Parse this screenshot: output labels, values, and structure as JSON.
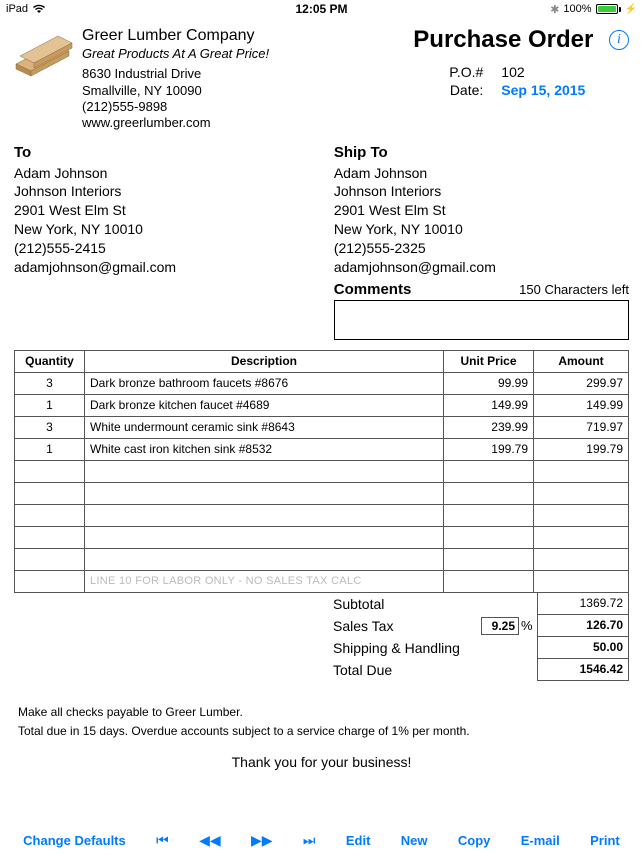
{
  "statusbar": {
    "device": "iPad",
    "time": "12:05 PM",
    "battery": "100%"
  },
  "company": {
    "name": "Greer Lumber Company",
    "slogan": "Great Products At A Great Price!",
    "address1": "8630 Industrial Drive",
    "address2": "Smallville, NY 10090",
    "phone": "(212)555-9898",
    "website": "www.greerlumber.com"
  },
  "title": "Purchase Order",
  "po": {
    "label": "P.O.#",
    "number": "102",
    "date_label": "Date:",
    "date": "Sep 15, 2015"
  },
  "billto": {
    "heading": "To",
    "name": "Adam Johnson",
    "co": "Johnson Interiors",
    "street": "2901 West Elm St",
    "city": "New York, NY 10010",
    "phone": "(212)555-2415",
    "email": "adamjohnson@gmail.com"
  },
  "shipto": {
    "heading": "Ship To",
    "name": "Adam Johnson",
    "co": "Johnson Interiors",
    "street": "2901 West Elm St",
    "city": "New York, NY 10010",
    "phone": "(212)555-2325",
    "email": "adamjohnson@gmail.com"
  },
  "comments": {
    "heading": "Comments",
    "chars_left": "150 Characters left"
  },
  "table": {
    "cols": {
      "qty": "Quantity",
      "desc": "Description",
      "unit": "Unit Price",
      "amt": "Amount"
    },
    "rows": [
      {
        "qty": "3",
        "desc": "Dark bronze bathroom faucets #8676",
        "unit": "99.99",
        "amt": "299.97"
      },
      {
        "qty": "1",
        "desc": "Dark bronze kitchen faucet #4689",
        "unit": "149.99",
        "amt": "149.99"
      },
      {
        "qty": "3",
        "desc": "White undermount ceramic sink #8643",
        "unit": "239.99",
        "amt": "719.97"
      },
      {
        "qty": "1",
        "desc": "White cast iron kitchen sink #8532",
        "unit": "199.79",
        "amt": "199.79"
      }
    ],
    "empty_rows": 5,
    "placeholder": "LINE 10 FOR LABOR ONLY - NO SALES TAX CALC"
  },
  "totals": {
    "subtotal_label": "Subtotal",
    "subtotal": "1369.72",
    "tax_label": "Sales Tax",
    "tax_rate": "9.25",
    "tax_pct": "%",
    "tax": "126.70",
    "ship_label": "Shipping & Handling",
    "ship": "50.00",
    "due_label": "Total Due",
    "due": "1546.42"
  },
  "notes": {
    "l1": "Make all checks payable to Greer Lumber.",
    "l2": "Total due in 15 days. Overdue accounts subject to a service charge of 1% per month.",
    "thanks": "Thank you for your business!"
  },
  "toolbar": {
    "change": "Change Defaults",
    "edit": "Edit",
    "new": "New",
    "copy": "Copy",
    "email": "E-mail",
    "print": "Print"
  },
  "colors": {
    "link": "#007aff",
    "battery": "#3bcc3b"
  }
}
